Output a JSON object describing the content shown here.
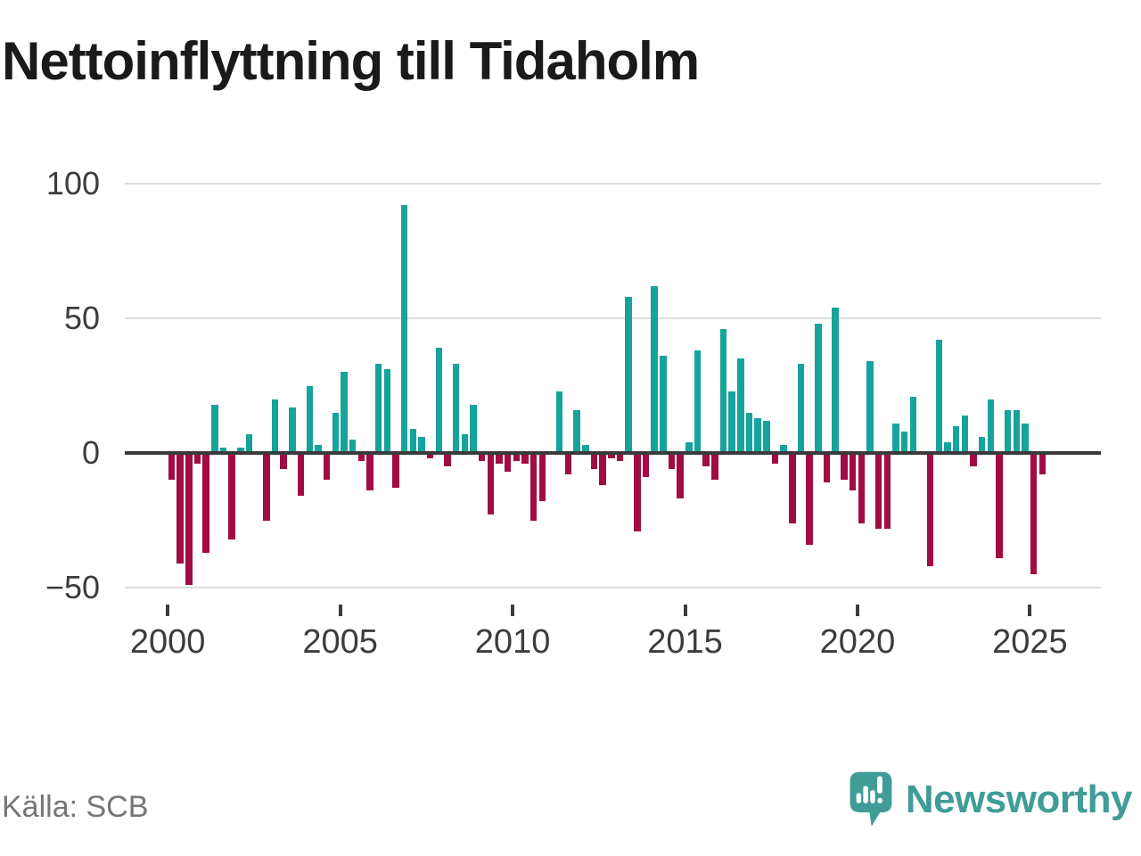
{
  "title": "Nettoinflyttning till Tidaholm",
  "source": "Källa: SCB",
  "brand": {
    "name": "Newsworthy",
    "color": "#3f9d96"
  },
  "colors": {
    "positive_bar": "#16a39b",
    "negative_bar": "#a20b44",
    "zero_line": "#3a3a3a",
    "gridline": "#dedede",
    "title_text": "#1a1a1a",
    "axis_text": "#3c3c3c",
    "source_text": "#767676",
    "background": "#ffffff"
  },
  "chart_data": {
    "type": "bar",
    "title": "Nettoinflyttning till Tidaholm",
    "x_unit": "quarter",
    "series_start": "2000-Q1",
    "series_end": "2025-Q2",
    "frequency": "quarterly",
    "count": 102,
    "values": [
      -10,
      -41,
      -49,
      -4,
      -37,
      18,
      2,
      -32,
      2,
      7,
      0,
      -25,
      20,
      -6,
      17,
      -16,
      25,
      3,
      -10,
      15,
      30,
      5,
      -3,
      -14,
      33,
      31,
      -13,
      92,
      9,
      6,
      -2,
      39,
      -5,
      33,
      7,
      18,
      -3,
      -23,
      -4,
      -7,
      -3,
      -4,
      -25,
      -18,
      0,
      23,
      -8,
      16,
      3,
      -6,
      -12,
      -2,
      -3,
      58,
      -29,
      -9,
      62,
      36,
      -6,
      -17,
      4,
      38,
      -5,
      -10,
      46,
      23,
      35,
      15,
      13,
      12,
      -4,
      3,
      -26,
      33,
      -34,
      48,
      -11,
      54,
      -10,
      -14,
      -26,
      34,
      -28,
      -28,
      11,
      8,
      21,
      0,
      -42,
      42,
      4,
      10,
      14,
      -5,
      6,
      20,
      -39,
      16,
      16,
      11,
      -45,
      -8
    ],
    "ylim": [
      -50,
      100
    ],
    "y_ticks": [
      100,
      50,
      0,
      -50
    ],
    "y_tick_labels": [
      "100",
      "50",
      "0",
      "−50"
    ],
    "x_tick_years": [
      2000,
      2005,
      2010,
      2015,
      2020,
      2025
    ],
    "x_tick_labels": [
      "2000",
      "2005",
      "2010",
      "2015",
      "2020",
      "2025"
    ],
    "grid": "horizontal",
    "legend": "none",
    "positive_color": "#16a39b",
    "negative_color": "#a20b44"
  }
}
